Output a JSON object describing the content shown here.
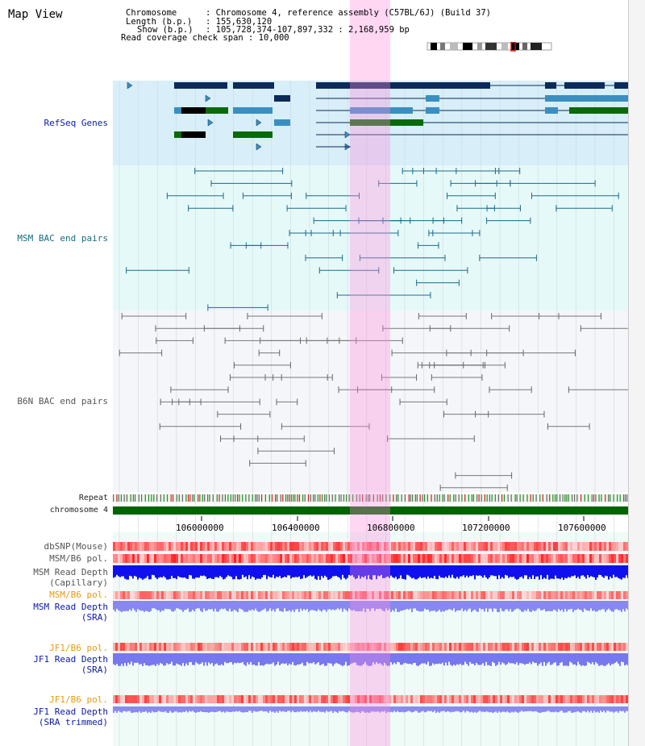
{
  "title": "Map View",
  "info": {
    "chromosome_key": "Chromosome",
    "chromosome_val": ": Chromosome 4, reference assembly (C57BL/6J) (Build 37)",
    "length_key": "Length (b.p.)",
    "length_val": ": 155,630,120",
    "show_key": "Show (b.p.)",
    "show_val": ": 105,728,374-107,897,332 : 2,168,959 bp",
    "span_line": "Read coverage check span : 10,000"
  },
  "tracks": {
    "refseq": "RefSeq Genes",
    "msm_bac": "MSM BAC end pairs",
    "b6n_bac": "B6N BAC end pairs",
    "repeat": "Repeat",
    "chromosome": "chromosome 4",
    "dbsnp": "dbSNP(Mouse)",
    "msm_b6_pol": "MSM/B6 pol.",
    "msm_depth_cap_1": "MSM Read Depth",
    "msm_depth_cap_2": "(Capillary)",
    "msm_b6_pol_2": "MSM/B6 pol.",
    "msm_depth_sra_1": "MSM Read Depth",
    "msm_depth_sra_2": "(SRA)",
    "jf1_b6_pol": "JF1/B6 pol.",
    "jf1_depth_sra_1": "JF1 Read Depth",
    "jf1_depth_sra_2": "(SRA)",
    "jf1_b6_pol_2": "JF1/B6 pol.",
    "jf1_depth_trim_1": "JF1 Read Depth",
    "jf1_depth_trim_2": "(SRA trimmed)"
  },
  "axis_ticks": [
    "106000000",
    "106400000",
    "106800000",
    "107200000",
    "107600000"
  ],
  "colors": {
    "refseq_bg": "#d8eef8",
    "msm_bg": "#e4f8f8",
    "b6n_bg": "#f2f6f8",
    "chrom_green": "#006400",
    "depth_blue": "#1010ee",
    "highlight": "#ff8cdc"
  }
}
